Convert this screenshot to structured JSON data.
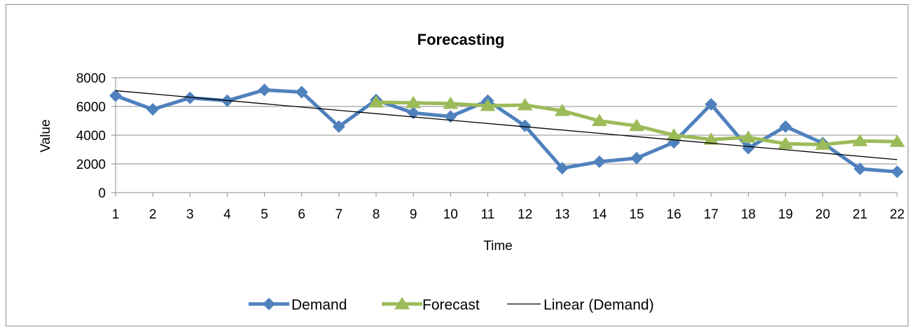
{
  "chart_data": {
    "type": "line",
    "title": "Forecasting",
    "xlabel": "Time",
    "ylabel": "Value",
    "x": [
      1,
      2,
      3,
      4,
      5,
      6,
      7,
      8,
      9,
      10,
      11,
      12,
      13,
      14,
      15,
      16,
      17,
      18,
      19,
      20,
      21,
      22
    ],
    "ylim": [
      0,
      8000
    ],
    "yticks": [
      0,
      2000,
      4000,
      6000,
      8000
    ],
    "grid": "horizontal",
    "legend_position": "bottom",
    "series": [
      {
        "name": "Demand",
        "color": "#4f81bd",
        "marker": "diamond",
        "values": [
          6750,
          5800,
          6600,
          6400,
          7150,
          7000,
          4600,
          6450,
          5550,
          5300,
          6400,
          4650,
          1700,
          2150,
          2400,
          3500,
          6150,
          3100,
          4600,
          3450,
          1650,
          1450
        ]
      },
      {
        "name": "Forecast",
        "color": "#9bbb59",
        "marker": "triangle",
        "x": [
          8,
          9,
          10,
          11,
          12,
          13,
          14,
          15,
          16,
          17,
          18,
          19,
          20,
          21,
          22
        ],
        "values": [
          6300,
          6250,
          6200,
          6050,
          6100,
          5700,
          5000,
          4650,
          4000,
          3700,
          3850,
          3400,
          3350,
          3600,
          3550
        ]
      },
      {
        "name": "Linear (Demand)",
        "color": "#000000",
        "marker": "none",
        "type": "trendline",
        "x": [
          1,
          22
        ],
        "values": [
          7100,
          2300
        ]
      }
    ]
  }
}
